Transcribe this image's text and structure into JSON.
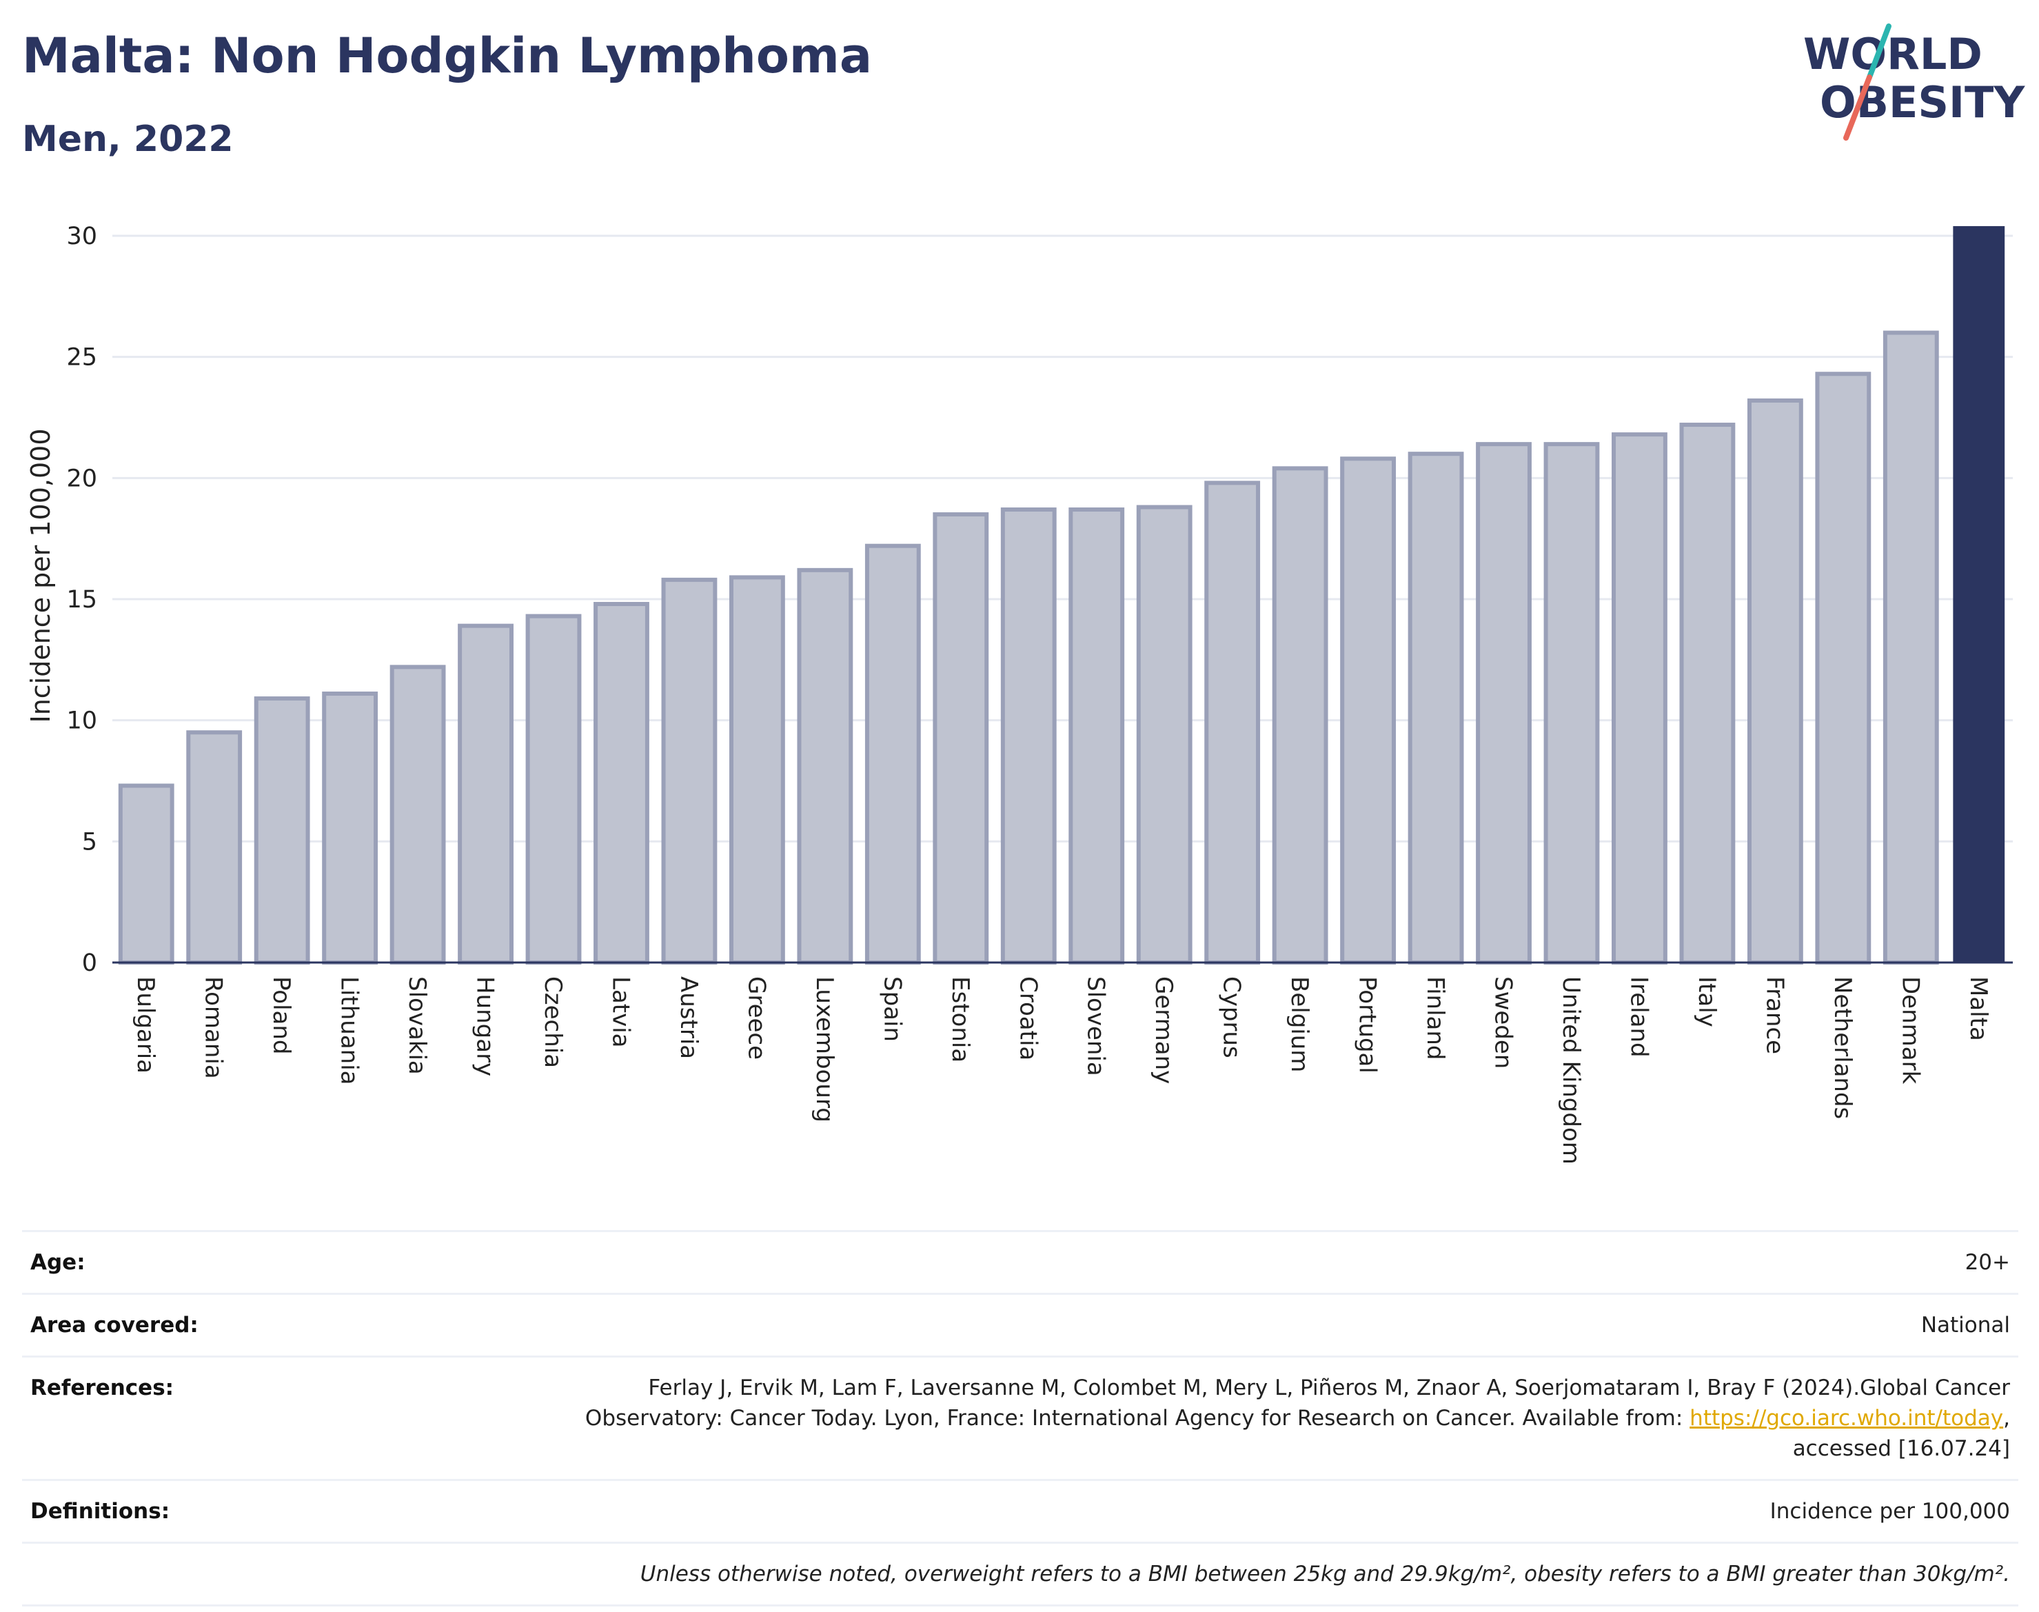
{
  "header": {
    "title": "Malta: Non Hodgkin Lymphoma",
    "subtitle": "Men, 2022"
  },
  "logo": {
    "line1": "WORLD",
    "line2": "OBESITY",
    "accent_colors": [
      "#2bb5b0",
      "#e8685a"
    ],
    "text_color": "#2b3560"
  },
  "chart_data": {
    "type": "bar",
    "ylabel": "Incidence per 100,000",
    "ylim": [
      0,
      30
    ],
    "yticks": [
      0,
      5,
      10,
      15,
      20,
      25,
      30
    ],
    "grid": true,
    "categories": [
      "Bulgaria",
      "Romania",
      "Poland",
      "Lithuania",
      "Slovakia",
      "Hungary",
      "Czechia",
      "Latvia",
      "Austria",
      "Greece",
      "Luxembourg",
      "Spain",
      "Estonia",
      "Croatia",
      "Slovenia",
      "Germany",
      "Cyprus",
      "Belgium",
      "Portugal",
      "Finland",
      "Sweden",
      "United Kingdom",
      "Ireland",
      "Italy",
      "France",
      "Netherlands",
      "Denmark",
      "Malta"
    ],
    "values": [
      7.3,
      9.5,
      10.9,
      11.1,
      12.2,
      13.9,
      14.3,
      14.8,
      15.8,
      15.9,
      16.2,
      17.2,
      18.5,
      18.7,
      18.7,
      18.8,
      19.8,
      20.4,
      20.8,
      21.0,
      21.4,
      21.4,
      21.8,
      22.2,
      23.2,
      24.3,
      26.0,
      30.4
    ],
    "highlight": "Malta",
    "colors": {
      "bar_fill": "#bfc3d0",
      "bar_stroke": "#9aa0b8",
      "highlight_fill": "#2b3560",
      "grid": "#e6e9f0",
      "axis": "#2b3560"
    }
  },
  "info": {
    "age_label": "Age:",
    "age_value": "20+",
    "area_label": "Area covered:",
    "area_value": "National",
    "references_label": "References:",
    "references_line1": "Ferlay J, Ervik M, Lam F, Laversanne M, Colombet M, Mery L, Piñeros M, Znaor A, Soerjomataram I, Bray F (2024).Global Cancer",
    "references_line2_pre": "Observatory: Cancer Today. Lyon, France: International Agency for Research on Cancer. Available from: ",
    "references_link": "https://gco.iarc.who.int/today",
    "references_line2_post": ",",
    "references_line3": "accessed [16.07.24]",
    "definitions_label": "Definitions:",
    "definitions_value": "Incidence per 100,000",
    "note": "Unless otherwise noted, overweight refers to a BMI between 25kg and 29.9kg/m², obesity refers to a BMI greater than 30kg/m²."
  }
}
